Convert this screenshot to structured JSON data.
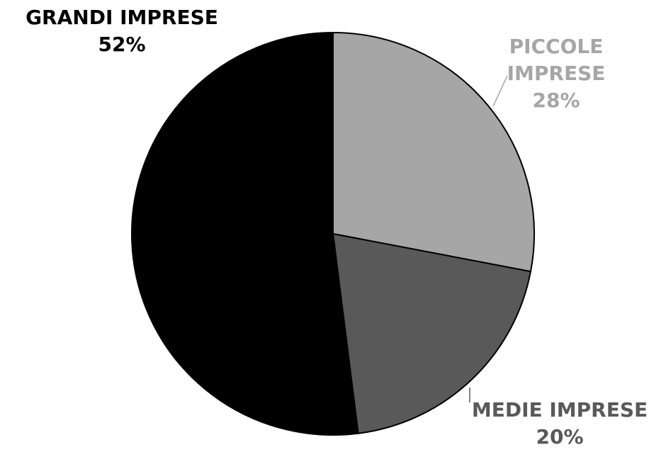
{
  "chart_data": {
    "type": "pie",
    "title": "",
    "slices": [
      {
        "label_lines": [
          "PICCOLE",
          "IMPRESE"
        ],
        "value": 28,
        "value_label": "28%",
        "color": "#a6a6a6",
        "label_color": "#a6a6a6"
      },
      {
        "label_lines": [
          "MEDIE IMPRESE"
        ],
        "value": 20,
        "value_label": "20%",
        "color": "#595959",
        "label_color": "#595959"
      },
      {
        "label_lines": [
          "GRANDI IMPRESE"
        ],
        "value": 52,
        "value_label": "52%",
        "color": "#000000",
        "label_color": "#000000"
      }
    ],
    "start_angle": "12 o'clock",
    "direction": "clockwise",
    "legend": "none",
    "edge_color": "#000000"
  }
}
